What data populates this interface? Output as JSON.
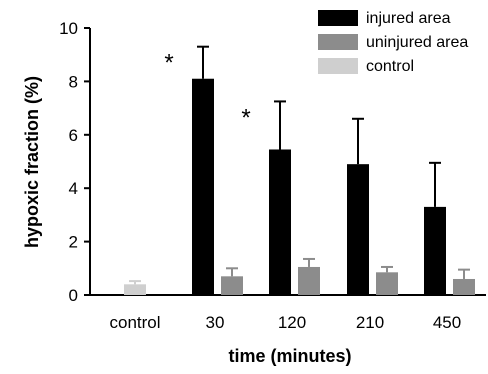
{
  "chart_data": {
    "type": "bar",
    "xlabel": "time (minutes)",
    "ylabel": "hypoxic fraction (%)",
    "ylim": [
      0,
      10
    ],
    "yticks": [
      0,
      2,
      4,
      6,
      8,
      10
    ],
    "grid": false,
    "legend_position": "top-right",
    "categories": [
      "control",
      "30",
      "120",
      "210",
      "450"
    ],
    "series": [
      {
        "name": "injured area",
        "color": "#000000",
        "values": [
          null,
          8.1,
          5.45,
          4.9,
          3.3
        ],
        "errors": [
          null,
          1.2,
          1.8,
          1.7,
          1.65
        ]
      },
      {
        "name": "uninjured area",
        "color": "#8c8c8c",
        "values": [
          null,
          0.7,
          1.05,
          0.85,
          0.6
        ],
        "errors": [
          null,
          0.3,
          0.3,
          0.2,
          0.35
        ]
      },
      {
        "name": "control",
        "color": "#cfcfcf",
        "values": [
          0.4,
          null,
          null,
          null,
          null
        ],
        "errors": [
          0.12,
          null,
          null,
          null,
          null
        ]
      }
    ],
    "annotations": [
      {
        "text": "*",
        "category": "30",
        "series": "injured area"
      },
      {
        "text": "*",
        "category": "120",
        "series": "injured area"
      }
    ]
  }
}
